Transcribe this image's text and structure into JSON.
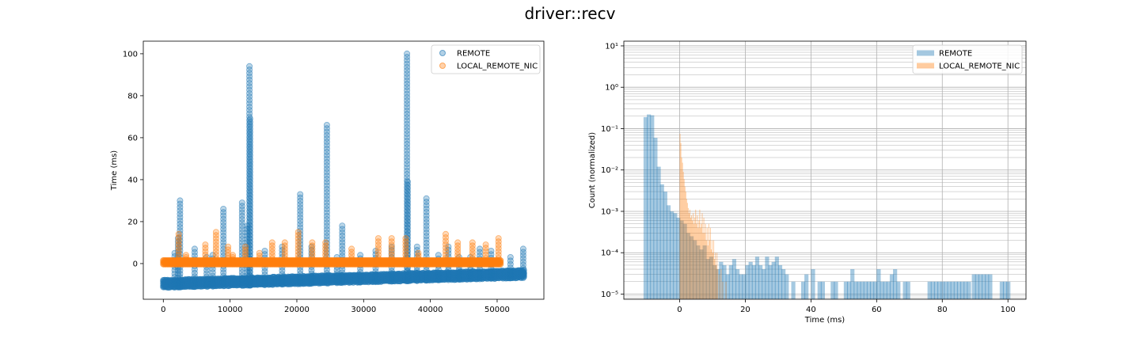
{
  "figure": {
    "title": "driver::recv"
  },
  "chart_data": [
    {
      "type": "scatter",
      "title": "",
      "xlabel": "",
      "ylabel": "Time (ms)",
      "xlim": [
        -3000,
        57000
      ],
      "ylim": [
        -17,
        106
      ],
      "xticks": [
        0,
        10000,
        20000,
        30000,
        40000,
        50000
      ],
      "xtick_labels": [
        "0",
        "10000",
        "20000",
        "30000",
        "40000",
        "50000"
      ],
      "yticks": [
        0,
        20,
        40,
        60,
        80,
        100
      ],
      "ytick_labels": [
        "0",
        "20",
        "40",
        "60",
        "80",
        "100"
      ],
      "grid": false,
      "legend_position": "top-right",
      "series": [
        {
          "name": "REMOTE",
          "color": "#1f77b4",
          "alpha": 0.35,
          "baseline": {
            "x": [
              0,
              54000
            ],
            "y_start": [
              -11.5,
              -6.8
            ],
            "y_end": [
              -11.5,
              -6.8
            ]
          },
          "spikes": [
            {
              "x": 2500,
              "top": 30
            },
            {
              "x": 2200,
              "top": 12
            },
            {
              "x": 1700,
              "top": 5
            },
            {
              "x": 4700,
              "top": 7
            },
            {
              "x": 6500,
              "top": 3
            },
            {
              "x": 7400,
              "top": 4
            },
            {
              "x": 9000,
              "top": 26
            },
            {
              "x": 11800,
              "top": 29
            },
            {
              "x": 12600,
              "top": 18
            },
            {
              "x": 13000,
              "top": 69
            },
            {
              "x": 12900,
              "top": 94
            },
            {
              "x": 15200,
              "top": 6
            },
            {
              "x": 17800,
              "top": 8
            },
            {
              "x": 20500,
              "top": 33
            },
            {
              "x": 22200,
              "top": 8
            },
            {
              "x": 24500,
              "top": 66
            },
            {
              "x": 26000,
              "top": 3
            },
            {
              "x": 26800,
              "top": 18
            },
            {
              "x": 29500,
              "top": 4
            },
            {
              "x": 31800,
              "top": 6
            },
            {
              "x": 34200,
              "top": 8
            },
            {
              "x": 36500,
              "top": 100
            },
            {
              "x": 36600,
              "top": 39
            },
            {
              "x": 38000,
              "top": 8
            },
            {
              "x": 39400,
              "top": 31
            },
            {
              "x": 41200,
              "top": 4
            },
            {
              "x": 42700,
              "top": 8
            },
            {
              "x": 44300,
              "top": 3
            },
            {
              "x": 46000,
              "top": 3
            },
            {
              "x": 47400,
              "top": 7
            },
            {
              "x": 49100,
              "top": 6
            },
            {
              "x": 52000,
              "top": 3
            },
            {
              "x": 53900,
              "top": 7
            }
          ]
        },
        {
          "name": "LOCAL_REMOTE_NIC",
          "color": "#ff7f0e",
          "alpha": 0.35,
          "baseline": {
            "x": [
              0,
              50500
            ],
            "y": 0.3
          },
          "spikes": [
            {
              "x": 2300,
              "top": 14
            },
            {
              "x": 3400,
              "top": 4
            },
            {
              "x": 6300,
              "top": 9
            },
            {
              "x": 7900,
              "top": 15
            },
            {
              "x": 9700,
              "top": 8
            },
            {
              "x": 10400,
              "top": 4
            },
            {
              "x": 12300,
              "top": 8
            },
            {
              "x": 14400,
              "top": 5
            },
            {
              "x": 16300,
              "top": 10
            },
            {
              "x": 18200,
              "top": 10
            },
            {
              "x": 20200,
              "top": 15
            },
            {
              "x": 22300,
              "top": 10
            },
            {
              "x": 24300,
              "top": 10
            },
            {
              "x": 28200,
              "top": 7
            },
            {
              "x": 32200,
              "top": 12
            },
            {
              "x": 34200,
              "top": 12
            },
            {
              "x": 36300,
              "top": 12
            },
            {
              "x": 38200,
              "top": 5
            },
            {
              "x": 42300,
              "top": 14
            },
            {
              "x": 44100,
              "top": 10
            },
            {
              "x": 46300,
              "top": 10
            },
            {
              "x": 48300,
              "top": 9
            },
            {
              "x": 50200,
              "top": 12
            }
          ]
        }
      ]
    },
    {
      "type": "bar",
      "subtype": "histogram",
      "title": "",
      "xlabel": "Time (ms)",
      "ylabel": "Count (normalized)",
      "xlim": [
        -17,
        105.5
      ],
      "ylim": [
        7.5e-06,
        13
      ],
      "yscale": "log",
      "xticks": [
        0,
        20,
        40,
        60,
        80,
        100
      ],
      "xtick_labels": [
        "0",
        "20",
        "40",
        "60",
        "80",
        "100"
      ],
      "yticks": [
        1e-05,
        0.0001,
        0.001,
        0.01,
        0.1,
        1,
        10
      ],
      "ytick_labels": [
        "10⁻⁵",
        "10⁻⁴",
        "10⁻³",
        "10⁻²",
        "10⁻¹",
        "10⁰",
        "10¹"
      ],
      "grid": true,
      "legend_position": "top-right",
      "series": [
        {
          "name": "REMOTE",
          "color": "#1f77b4",
          "alpha": 0.4,
          "bin_width": 1.25,
          "bins": [
            [
              -11,
              0.19
            ],
            [
              -10,
              0.22
            ],
            [
              -9,
              0.21
            ],
            [
              -8,
              0.06
            ],
            [
              -7,
              0.012
            ],
            [
              -6,
              0.0045
            ],
            [
              -5,
              0.003
            ],
            [
              -4,
              0.0014
            ],
            [
              -3,
              0.001
            ],
            [
              -2,
              0.0009
            ],
            [
              -1,
              0.0007
            ],
            [
              0,
              0.0006
            ],
            [
              1,
              0.0005
            ],
            [
              2,
              0.0003
            ],
            [
              3,
              0.00025
            ],
            [
              4,
              0.0002
            ],
            [
              5,
              0.00015
            ],
            [
              6,
              0.00012
            ],
            [
              7,
              0.00015
            ],
            [
              8,
              7e-05
            ],
            [
              9,
              8e-05
            ],
            [
              10,
              5e-05
            ],
            [
              11,
              4e-05
            ],
            [
              12,
              6e-05
            ],
            [
              13,
              5e-05
            ],
            [
              14,
              3e-05
            ],
            [
              15,
              5e-05
            ],
            [
              16,
              7e-05
            ],
            [
              17,
              4e-05
            ],
            [
              18,
              3e-05
            ],
            [
              19,
              3e-05
            ],
            [
              20,
              5e-05
            ],
            [
              21,
              6e-05
            ],
            [
              22,
              5e-05
            ],
            [
              23,
              8e-05
            ],
            [
              24,
              5e-05
            ],
            [
              25,
              4e-05
            ],
            [
              26,
              8e-05
            ],
            [
              27,
              5e-05
            ],
            [
              28,
              6e-05
            ],
            [
              29,
              8e-05
            ],
            [
              30,
              5e-05
            ],
            [
              31,
              4e-05
            ],
            [
              32,
              3e-05
            ],
            [
              34,
              2e-05
            ],
            [
              37,
              2e-05
            ],
            [
              38,
              3e-05
            ],
            [
              40,
              4e-05
            ],
            [
              42,
              2e-05
            ],
            [
              43,
              2e-05
            ],
            [
              46,
              2e-05
            ],
            [
              47,
              2e-05
            ],
            [
              50,
              2e-05
            ],
            [
              51,
              2e-05
            ],
            [
              52,
              4e-05
            ],
            [
              53,
              2e-05
            ],
            [
              54,
              2e-05
            ],
            [
              55,
              2e-05
            ],
            [
              56,
              2e-05
            ],
            [
              57,
              2e-05
            ],
            [
              58,
              2e-05
            ],
            [
              59,
              2e-05
            ],
            [
              60,
              4e-05
            ],
            [
              61,
              2e-05
            ],
            [
              62,
              2e-05
            ],
            [
              63,
              2e-05
            ],
            [
              64,
              3e-05
            ],
            [
              65,
              4e-05
            ],
            [
              66,
              2e-05
            ],
            [
              68,
              2e-05
            ],
            [
              69,
              2e-05
            ],
            [
              75.5,
              2e-05
            ],
            [
              76.5,
              2e-05
            ],
            [
              77.5,
              2e-05
            ],
            [
              78.5,
              2e-05
            ],
            [
              79.5,
              2e-05
            ],
            [
              80.5,
              2e-05
            ],
            [
              81.5,
              2e-05
            ],
            [
              82.5,
              2e-05
            ],
            [
              83.5,
              2e-05
            ],
            [
              84.5,
              2e-05
            ],
            [
              85.5,
              2e-05
            ],
            [
              86.5,
              2e-05
            ],
            [
              87.5,
              2e-05
            ],
            [
              89,
              3e-05
            ],
            [
              90,
              3e-05
            ],
            [
              91,
              3e-05
            ],
            [
              92,
              3e-05
            ],
            [
              93,
              3e-05
            ],
            [
              94,
              3e-05
            ],
            [
              97.5,
              2e-05
            ],
            [
              98.5,
              2e-05
            ],
            [
              99.5,
              2e-05
            ]
          ]
        },
        {
          "name": "LOCAL_REMOTE_NIC",
          "color": "#ff7f0e",
          "alpha": 0.4,
          "bin_width": 0.25,
          "bins": [
            [
              0.0,
              0.075
            ],
            [
              0.25,
              0.045
            ],
            [
              0.5,
              0.02
            ],
            [
              0.75,
              0.015
            ],
            [
              1.0,
              0.009
            ],
            [
              1.25,
              0.006
            ],
            [
              1.5,
              0.004
            ],
            [
              1.75,
              0.003
            ],
            [
              2.0,
              0.002
            ],
            [
              2.25,
              0.0016
            ],
            [
              2.5,
              0.0012
            ],
            [
              2.75,
              0.0009
            ],
            [
              3.0,
              0.0011
            ],
            [
              3.25,
              0.0007
            ],
            [
              3.5,
              0.0008
            ],
            [
              3.75,
              0.0006
            ],
            [
              4.0,
              0.0009
            ],
            [
              4.25,
              0.0005
            ],
            [
              4.5,
              0.0007
            ],
            [
              4.75,
              0.0011
            ],
            [
              5.0,
              0.0005
            ],
            [
              5.25,
              0.0008
            ],
            [
              5.5,
              0.0004
            ],
            [
              5.75,
              0.0006
            ],
            [
              6.0,
              0.0011
            ],
            [
              6.25,
              0.0004
            ],
            [
              6.5,
              0.0005
            ],
            [
              6.75,
              0.0009
            ],
            [
              7.0,
              0.0003
            ],
            [
              7.25,
              0.0007
            ],
            [
              7.5,
              0.0003
            ],
            [
              7.75,
              0.0005
            ],
            [
              8.0,
              0.0002
            ],
            [
              8.25,
              0.0004
            ],
            [
              8.5,
              0.00015
            ],
            [
              8.75,
              0.0005
            ],
            [
              9.0,
              0.0002
            ],
            [
              9.25,
              0.0004
            ],
            [
              9.5,
              0.00012
            ],
            [
              9.75,
              0.0002
            ],
            [
              10.0,
              0.0001
            ],
            [
              10.25,
              0.0002
            ],
            [
              10.5,
              7e-05
            ],
            [
              10.75,
              0.0001
            ],
            [
              11.0,
              5e-05
            ],
            [
              11.25,
              0.0001
            ],
            [
              11.5,
              4e-05
            ],
            [
              12.0,
              3e-05
            ],
            [
              12.5,
              4e-05
            ],
            [
              13.0,
              2e-05
            ],
            [
              14.0,
              2e-05
            ]
          ]
        }
      ]
    }
  ]
}
